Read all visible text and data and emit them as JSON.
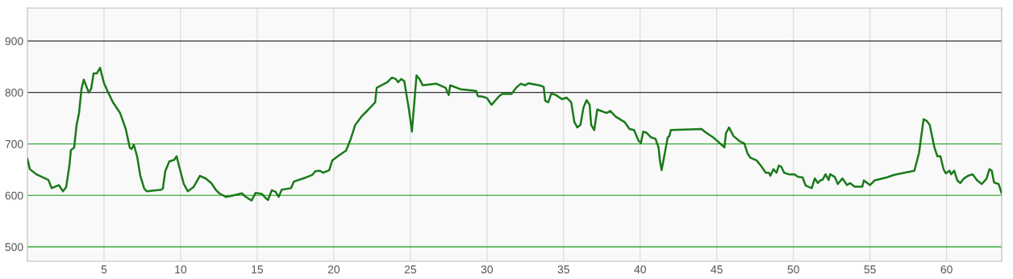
{
  "chart_data": {
    "type": "line",
    "x": [
      0,
      0.16,
      0.58,
      1.37,
      1.58,
      2.05,
      2.32,
      2.53,
      2.74,
      2.84,
      3.05,
      3.21,
      3.37,
      3.53,
      3.68,
      4.0,
      4.16,
      4.32,
      4.53,
      4.74,
      5.0,
      5.21,
      5.58,
      6.05,
      6.42,
      6.68,
      6.79,
      6.95,
      7.16,
      7.37,
      7.63,
      7.79,
      8.74,
      8.84,
      9.0,
      9.26,
      9.58,
      9.74,
      9.89,
      10.21,
      10.47,
      10.84,
      11.26,
      11.63,
      12.0,
      12.32,
      12.53,
      12.95,
      13.3,
      14.0,
      14.26,
      14.63,
      14.9,
      15.3,
      15.58,
      15.7,
      15.95,
      16.2,
      16.4,
      16.6,
      17.2,
      17.4,
      18.2,
      18.6,
      18.8,
      19.1,
      19.3,
      19.7,
      19.9,
      20.3,
      20.8,
      21.1,
      21.4,
      21.8,
      22.2,
      22.7,
      22.8,
      23.5,
      23.8,
      24.05,
      24.2,
      24.4,
      24.6,
      24.9,
      25.1,
      25.4,
      25.6,
      25.8,
      26.7,
      27.3,
      27.5,
      27.6,
      28.3,
      29.3,
      29.4,
      29.7,
      30.0,
      30.3,
      30.8,
      31.0,
      31.6,
      31.9,
      32.2,
      32.5,
      32.7,
      33.4,
      33.7,
      33.8,
      34.0,
      34.2,
      34.5,
      34.9,
      35.2,
      35.5,
      35.7,
      35.9,
      36.1,
      36.3,
      36.5,
      36.7,
      36.8,
      37.0,
      37.2,
      37.8,
      38.05,
      38.4,
      39.0,
      39.3,
      39.6,
      39.9,
      40.05,
      40.2,
      40.4,
      40.7,
      41.0,
      41.2,
      41.3,
      41.4,
      41.8,
      41.9,
      42.0,
      44.0,
      44.3,
      44.8,
      45.4,
      45.5,
      45.6,
      45.8,
      46.1,
      46.5,
      46.8,
      47.0,
      47.2,
      47.6,
      47.9,
      48.2,
      48.4,
      48.5,
      48.7,
      48.9,
      49.05,
      49.2,
      49.4,
      49.7,
      50.05,
      50.3,
      50.6,
      50.8,
      51.2,
      51.4,
      51.6,
      51.8,
      51.9,
      52.1,
      52.3,
      52.4,
      52.7,
      52.9,
      53.2,
      53.5,
      53.7,
      54.0,
      54.5,
      54.6,
      55.0,
      55.3,
      56.1,
      56.6,
      57.9,
      58.2,
      58.5,
      58.7,
      58.9,
      59.2,
      59.4,
      59.6,
      59.8,
      59.95,
      60.2,
      60.3,
      60.5,
      60.7,
      60.9,
      61.1,
      61.4,
      61.7,
      62.0,
      62.3,
      62.6,
      62.8,
      62.95,
      63.1,
      63.4,
      63.6
    ],
    "series": [
      {
        "color": "#1a7a1a",
        "values": [
          671,
          651,
          641,
          630,
          614,
          620,
          608,
          616,
          658,
          688,
          693,
          737,
          760,
          807,
          825,
          800,
          807,
          837,
          837,
          848,
          818,
          804,
          781,
          760,
          729,
          693,
          690,
          698,
          676,
          638,
          613,
          608,
          611,
          613,
          647,
          666,
          669,
          676,
          658,
          622,
          608,
          616,
          638,
          633,
          624,
          610,
          604,
          597,
          599,
          604,
          597,
          590,
          605,
          603,
          594,
          591,
          610,
          607,
          597,
          611,
          614,
          627,
          635,
          640,
          647,
          648,
          644,
          649,
          668,
          677,
          687,
          709,
          737,
          753,
          765,
          781,
          809,
          820,
          829,
          826,
          820,
          826,
          822,
          768,
          724,
          833,
          826,
          814,
          817,
          809,
          795,
          814,
          806,
          803,
          793,
          792,
          789,
          776,
          793,
          797,
          797,
          809,
          817,
          814,
          818,
          814,
          811,
          784,
          781,
          798,
          795,
          787,
          790,
          781,
          743,
          732,
          737,
          771,
          785,
          776,
          737,
          727,
          767,
          760,
          764,
          753,
          742,
          729,
          727,
          706,
          702,
          724,
          722,
          713,
          710,
          693,
          665,
          649,
          713,
          715,
          727,
          729,
          722,
          712,
          696,
          693,
          721,
          732,
          715,
          705,
          701,
          682,
          673,
          668,
          657,
          644,
          644,
          638,
          651,
          644,
          658,
          656,
          644,
          641,
          641,
          636,
          635,
          619,
          614,
          633,
          624,
          630,
          630,
          641,
          630,
          641,
          636,
          622,
          633,
          620,
          624,
          617,
          617,
          629,
          620,
          629,
          635,
          640,
          648,
          682,
          748,
          745,
          737,
          694,
          676,
          676,
          651,
          643,
          648,
          641,
          648,
          629,
          624,
          632,
          638,
          641,
          629,
          622,
          632,
          651,
          648,
          625,
          622,
          604
        ]
      }
    ],
    "xlim": [
      0,
      63.6
    ],
    "ylim": [
      472,
      964
    ],
    "xticks": [
      5,
      10,
      15,
      20,
      25,
      30,
      35,
      40,
      45,
      50,
      55,
      60
    ],
    "yticks": [
      500,
      600,
      700,
      800,
      900
    ],
    "grid": "x",
    "marker": "none",
    "line_style": "solid",
    "ref_lines": [
      {
        "axis": "y",
        "value": 900,
        "color": "#333333"
      },
      {
        "axis": "y",
        "value": 800,
        "color": "#333333"
      },
      {
        "axis": "y",
        "value": 700,
        "color": "#139a13"
      },
      {
        "axis": "y",
        "value": 600,
        "color": "#139a13"
      },
      {
        "axis": "y",
        "value": 500,
        "color": "#139a13"
      }
    ]
  }
}
